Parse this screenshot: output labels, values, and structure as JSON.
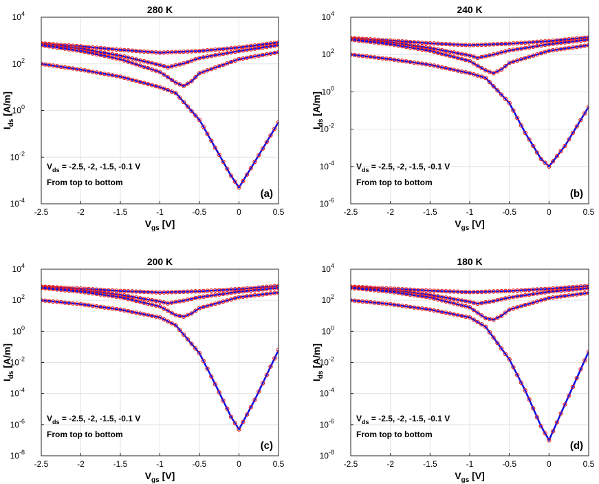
{
  "chart_data": [
    {
      "type": "scatter+line",
      "panel": "(a)",
      "title": "280 K",
      "xlabel_main": "V",
      "xlabel_sub": "gs",
      "xlabel_unit": " [V]",
      "ylabel_main": "I",
      "ylabel_sub": "ds",
      "ylabel_unit": " [A/m]",
      "xlim": [
        -2.5,
        0.5
      ],
      "ylim_log10": [
        -4,
        4
      ],
      "xticks": [
        "-2.5",
        "-2",
        "-1.5",
        "-1",
        "-0.5",
        "0",
        "0.5"
      ],
      "yticks_exp": [
        "-4",
        "-2",
        "0",
        "2",
        "4"
      ],
      "annotation_main": "V",
      "annotation_sub": "ds",
      "annotation_rest": " = -2.5, -2, -1.5, -0.1 V",
      "annotation_line2": "From top to bottom",
      "annotation_pos": "lower-left",
      "legend": "none",
      "series_markers": "red circles = measured, blue lines = simulated",
      "series": [
        {
          "name": "Vds = -2.5 V",
          "x": [
            -2.5,
            -2.0,
            -1.5,
            -1.0,
            -0.5,
            0.0,
            0.5
          ],
          "log10_Ids": [
            2.88,
            2.75,
            2.6,
            2.48,
            2.55,
            2.7,
            2.92
          ]
        },
        {
          "name": "Vds = -2 V",
          "x": [
            -2.5,
            -2.0,
            -1.5,
            -1.0,
            -0.9,
            -0.7,
            -0.5,
            0.0,
            0.5
          ],
          "log10_Ids": [
            2.85,
            2.65,
            2.35,
            1.95,
            1.85,
            2.02,
            2.25,
            2.55,
            2.8
          ]
        },
        {
          "name": "Vds = -1.5 V",
          "x": [
            -2.5,
            -2.0,
            -1.5,
            -1.0,
            -0.8,
            -0.7,
            -0.6,
            -0.5,
            0.0,
            0.5
          ],
          "log10_Ids": [
            2.8,
            2.55,
            2.2,
            1.65,
            1.2,
            1.05,
            1.25,
            1.6,
            2.2,
            2.5
          ]
        },
        {
          "name": "Vds = -0.1 V",
          "x": [
            -2.5,
            -2.0,
            -1.5,
            -1.0,
            -0.8,
            -0.5,
            -0.3,
            -0.1,
            0.0,
            0.2,
            0.5
          ],
          "log10_Ids": [
            2.0,
            1.75,
            1.45,
            1.0,
            0.75,
            -0.4,
            -1.6,
            -2.8,
            -3.3,
            -2.2,
            -0.5
          ]
        }
      ]
    },
    {
      "type": "scatter+line",
      "panel": "(b)",
      "title": "240 K",
      "xlabel_main": "V",
      "xlabel_sub": "gs",
      "xlabel_unit": " [V]",
      "ylabel_main": "I",
      "ylabel_sub": "ds",
      "ylabel_unit": " [A/m]",
      "xlim": [
        -2.5,
        0.5
      ],
      "ylim_log10": [
        -6,
        4
      ],
      "xticks": [
        "-2.5",
        "-2",
        "-1.5",
        "-1",
        "-0.5",
        "0",
        "0.5"
      ],
      "yticks_exp": [
        "-6",
        "-4",
        "-2",
        "0",
        "2",
        "4"
      ],
      "annotation_main": "V",
      "annotation_sub": "ds",
      "annotation_rest": " = -2.5, -2, -1.5, -0.1 V",
      "annotation_line2": "From top to bottom",
      "annotation_pos": "lower-left",
      "legend": "none",
      "series_markers": "red circles = measured, blue lines = simulated",
      "series": [
        {
          "name": "Vds = -2.5 V",
          "x": [
            -2.5,
            -2.0,
            -1.5,
            -1.0,
            -0.5,
            0.0,
            0.5
          ],
          "log10_Ids": [
            2.88,
            2.75,
            2.6,
            2.5,
            2.58,
            2.72,
            2.92
          ]
        },
        {
          "name": "Vds = -2 V",
          "x": [
            -2.5,
            -2.0,
            -1.5,
            -1.0,
            -0.9,
            -0.7,
            -0.5,
            0.0,
            0.5
          ],
          "log10_Ids": [
            2.85,
            2.65,
            2.35,
            1.95,
            1.82,
            2.0,
            2.22,
            2.55,
            2.8
          ]
        },
        {
          "name": "Vds = -1.5 V",
          "x": [
            -2.5,
            -2.0,
            -1.5,
            -1.0,
            -0.8,
            -0.7,
            -0.6,
            -0.5,
            0.0,
            0.5
          ],
          "log10_Ids": [
            2.8,
            2.55,
            2.2,
            1.65,
            1.15,
            1.0,
            1.2,
            1.55,
            2.2,
            2.5
          ]
        },
        {
          "name": "Vds = -0.1 V",
          "x": [
            -2.5,
            -2.0,
            -1.5,
            -1.0,
            -0.8,
            -0.5,
            -0.3,
            -0.1,
            0.0,
            0.2,
            0.5
          ],
          "log10_Ids": [
            2.0,
            1.75,
            1.45,
            1.0,
            0.75,
            -0.6,
            -2.2,
            -3.6,
            -4.0,
            -2.9,
            -0.8
          ]
        }
      ]
    },
    {
      "type": "scatter+line",
      "panel": "(c)",
      "title": "200 K",
      "xlabel_main": "V",
      "xlabel_sub": "gs",
      "xlabel_unit": " [V]",
      "ylabel_main": "I",
      "ylabel_sub": "ds",
      "ylabel_unit": " [A/m]",
      "xlim": [
        -2.5,
        0.5
      ],
      "ylim_log10": [
        -8,
        4
      ],
      "xticks": [
        "-2.5",
        "-2",
        "-1.5",
        "-1",
        "-0.5",
        "0",
        "0.5"
      ],
      "yticks_exp": [
        "-8",
        "-6",
        "-4",
        "-2",
        "0",
        "2",
        "4"
      ],
      "annotation_main": "V",
      "annotation_sub": "ds",
      "annotation_rest": " = -2.5, -2, -1.5, -0.1 V",
      "annotation_line2": "From top to bottom",
      "annotation_pos": "lower-left",
      "legend": "none",
      "series_markers": "red circles = measured, blue lines = simulated",
      "series": [
        {
          "name": "Vds = -2.5 V",
          "x": [
            -2.5,
            -2.0,
            -1.5,
            -1.0,
            -0.5,
            0.0,
            0.5
          ],
          "log10_Ids": [
            2.88,
            2.75,
            2.6,
            2.5,
            2.58,
            2.72,
            2.92
          ]
        },
        {
          "name": "Vds = -2 V",
          "x": [
            -2.5,
            -2.0,
            -1.5,
            -1.0,
            -0.9,
            -0.7,
            -0.5,
            0.0,
            0.5
          ],
          "log10_Ids": [
            2.85,
            2.65,
            2.35,
            1.92,
            1.8,
            1.98,
            2.2,
            2.55,
            2.8
          ]
        },
        {
          "name": "Vds = -1.5 V",
          "x": [
            -2.5,
            -2.0,
            -1.5,
            -1.0,
            -0.8,
            -0.7,
            -0.6,
            -0.5,
            0.0,
            0.5
          ],
          "log10_Ids": [
            2.8,
            2.55,
            2.2,
            1.6,
            1.05,
            0.95,
            1.15,
            1.5,
            2.2,
            2.5
          ]
        },
        {
          "name": "Vds = -0.1 V",
          "x": [
            -2.5,
            -2.0,
            -1.5,
            -1.0,
            -0.8,
            -0.5,
            -0.3,
            -0.1,
            0.0,
            0.2,
            0.5
          ],
          "log10_Ids": [
            2.0,
            1.75,
            1.4,
            0.9,
            0.4,
            -1.4,
            -3.4,
            -5.5,
            -6.3,
            -4.4,
            -1.2
          ]
        }
      ]
    },
    {
      "type": "scatter+line",
      "panel": "(d)",
      "title": "180 K",
      "xlabel_main": "V",
      "xlabel_sub": "gs",
      "xlabel_unit": " [V]",
      "ylabel_main": "I",
      "ylabel_sub": "ds",
      "ylabel_unit": " [A/m]",
      "xlim": [
        -2.5,
        0.5
      ],
      "ylim_log10": [
        -8,
        4
      ],
      "xticks": [
        "-2.5",
        "-2",
        "-1.5",
        "-1",
        "-0.5",
        "0",
        "0.5"
      ],
      "yticks_exp": [
        "-8",
        "-6",
        "-4",
        "-2",
        "0",
        "2",
        "4"
      ],
      "annotation_main": "V",
      "annotation_sub": "ds",
      "annotation_rest": " = -2.5, -2, -1.5, -0.1 V",
      "annotation_line2": "From top to bottom",
      "annotation_pos": "lower-left",
      "legend": "none",
      "series_markers": "red circles = measured, blue lines = simulated",
      "series": [
        {
          "name": "Vds = -2.5 V",
          "x": [
            -2.5,
            -2.0,
            -1.5,
            -1.0,
            -0.5,
            0.0,
            0.5
          ],
          "log10_Ids": [
            2.88,
            2.75,
            2.62,
            2.52,
            2.6,
            2.74,
            2.92
          ]
        },
        {
          "name": "Vds = -2 V",
          "x": [
            -2.5,
            -2.0,
            -1.5,
            -1.0,
            -0.9,
            -0.7,
            -0.5,
            0.0,
            0.5
          ],
          "log10_Ids": [
            2.85,
            2.65,
            2.35,
            1.9,
            1.78,
            1.95,
            2.18,
            2.55,
            2.78
          ]
        },
        {
          "name": "Vds = -1.5 V",
          "x": [
            -2.5,
            -2.0,
            -1.5,
            -1.0,
            -0.8,
            -0.7,
            -0.6,
            -0.5,
            0.0,
            0.5
          ],
          "log10_Ids": [
            2.8,
            2.55,
            2.18,
            1.55,
            0.85,
            0.75,
            1.0,
            1.4,
            2.15,
            2.48
          ]
        },
        {
          "name": "Vds = -0.1 V",
          "x": [
            -2.5,
            -2.0,
            -1.5,
            -1.0,
            -0.8,
            -0.5,
            -0.3,
            -0.1,
            0.0,
            0.2,
            0.5
          ],
          "log10_Ids": [
            2.0,
            1.75,
            1.4,
            0.9,
            0.3,
            -1.8,
            -3.8,
            -6.1,
            -7.0,
            -4.7,
            -1.3
          ]
        }
      ]
    }
  ],
  "colors": {
    "measured": "#e8231f",
    "simulated": "#1010e6",
    "grid": "#e3e3e3",
    "frame": "#262626"
  }
}
